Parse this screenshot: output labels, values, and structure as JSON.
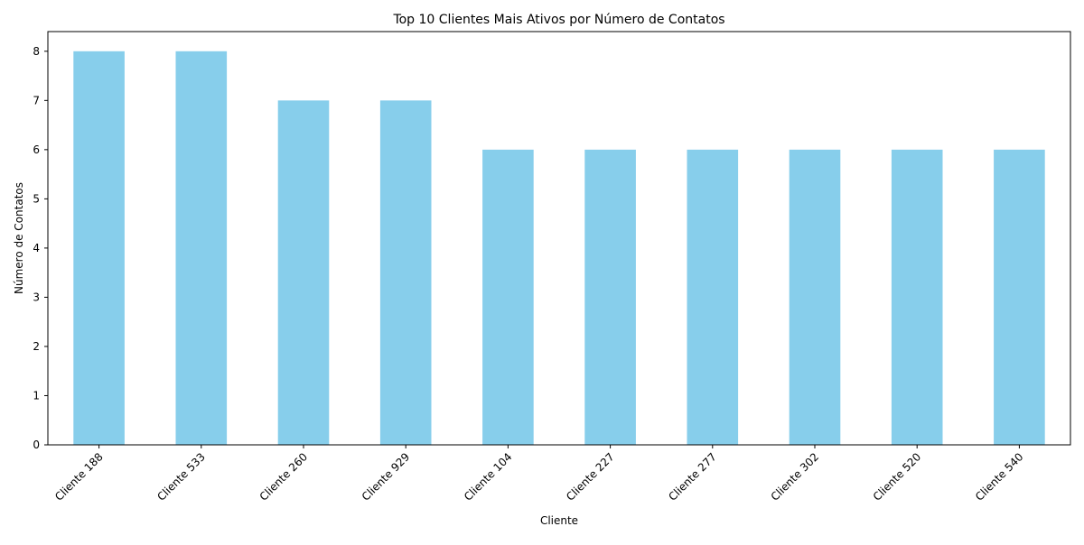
{
  "chart_data": {
    "type": "bar",
    "title": "Top 10 Clientes Mais Ativos por Número de Contatos",
    "xlabel": "Cliente",
    "ylabel": "Número de Contatos",
    "categories": [
      "Cliente 188",
      "Cliente 533",
      "Cliente 260",
      "Cliente 929",
      "Cliente 104",
      "Cliente 227",
      "Cliente 277",
      "Cliente 302",
      "Cliente 520",
      "Cliente 540"
    ],
    "values": [
      8,
      8,
      7,
      7,
      6,
      6,
      6,
      6,
      6,
      6
    ],
    "ylim": [
      0,
      8.4
    ],
    "yticks": [
      0,
      1,
      2,
      3,
      4,
      5,
      6,
      7,
      8
    ],
    "bar_color": "#87CEEB",
    "grid": false,
    "legend": "none"
  }
}
